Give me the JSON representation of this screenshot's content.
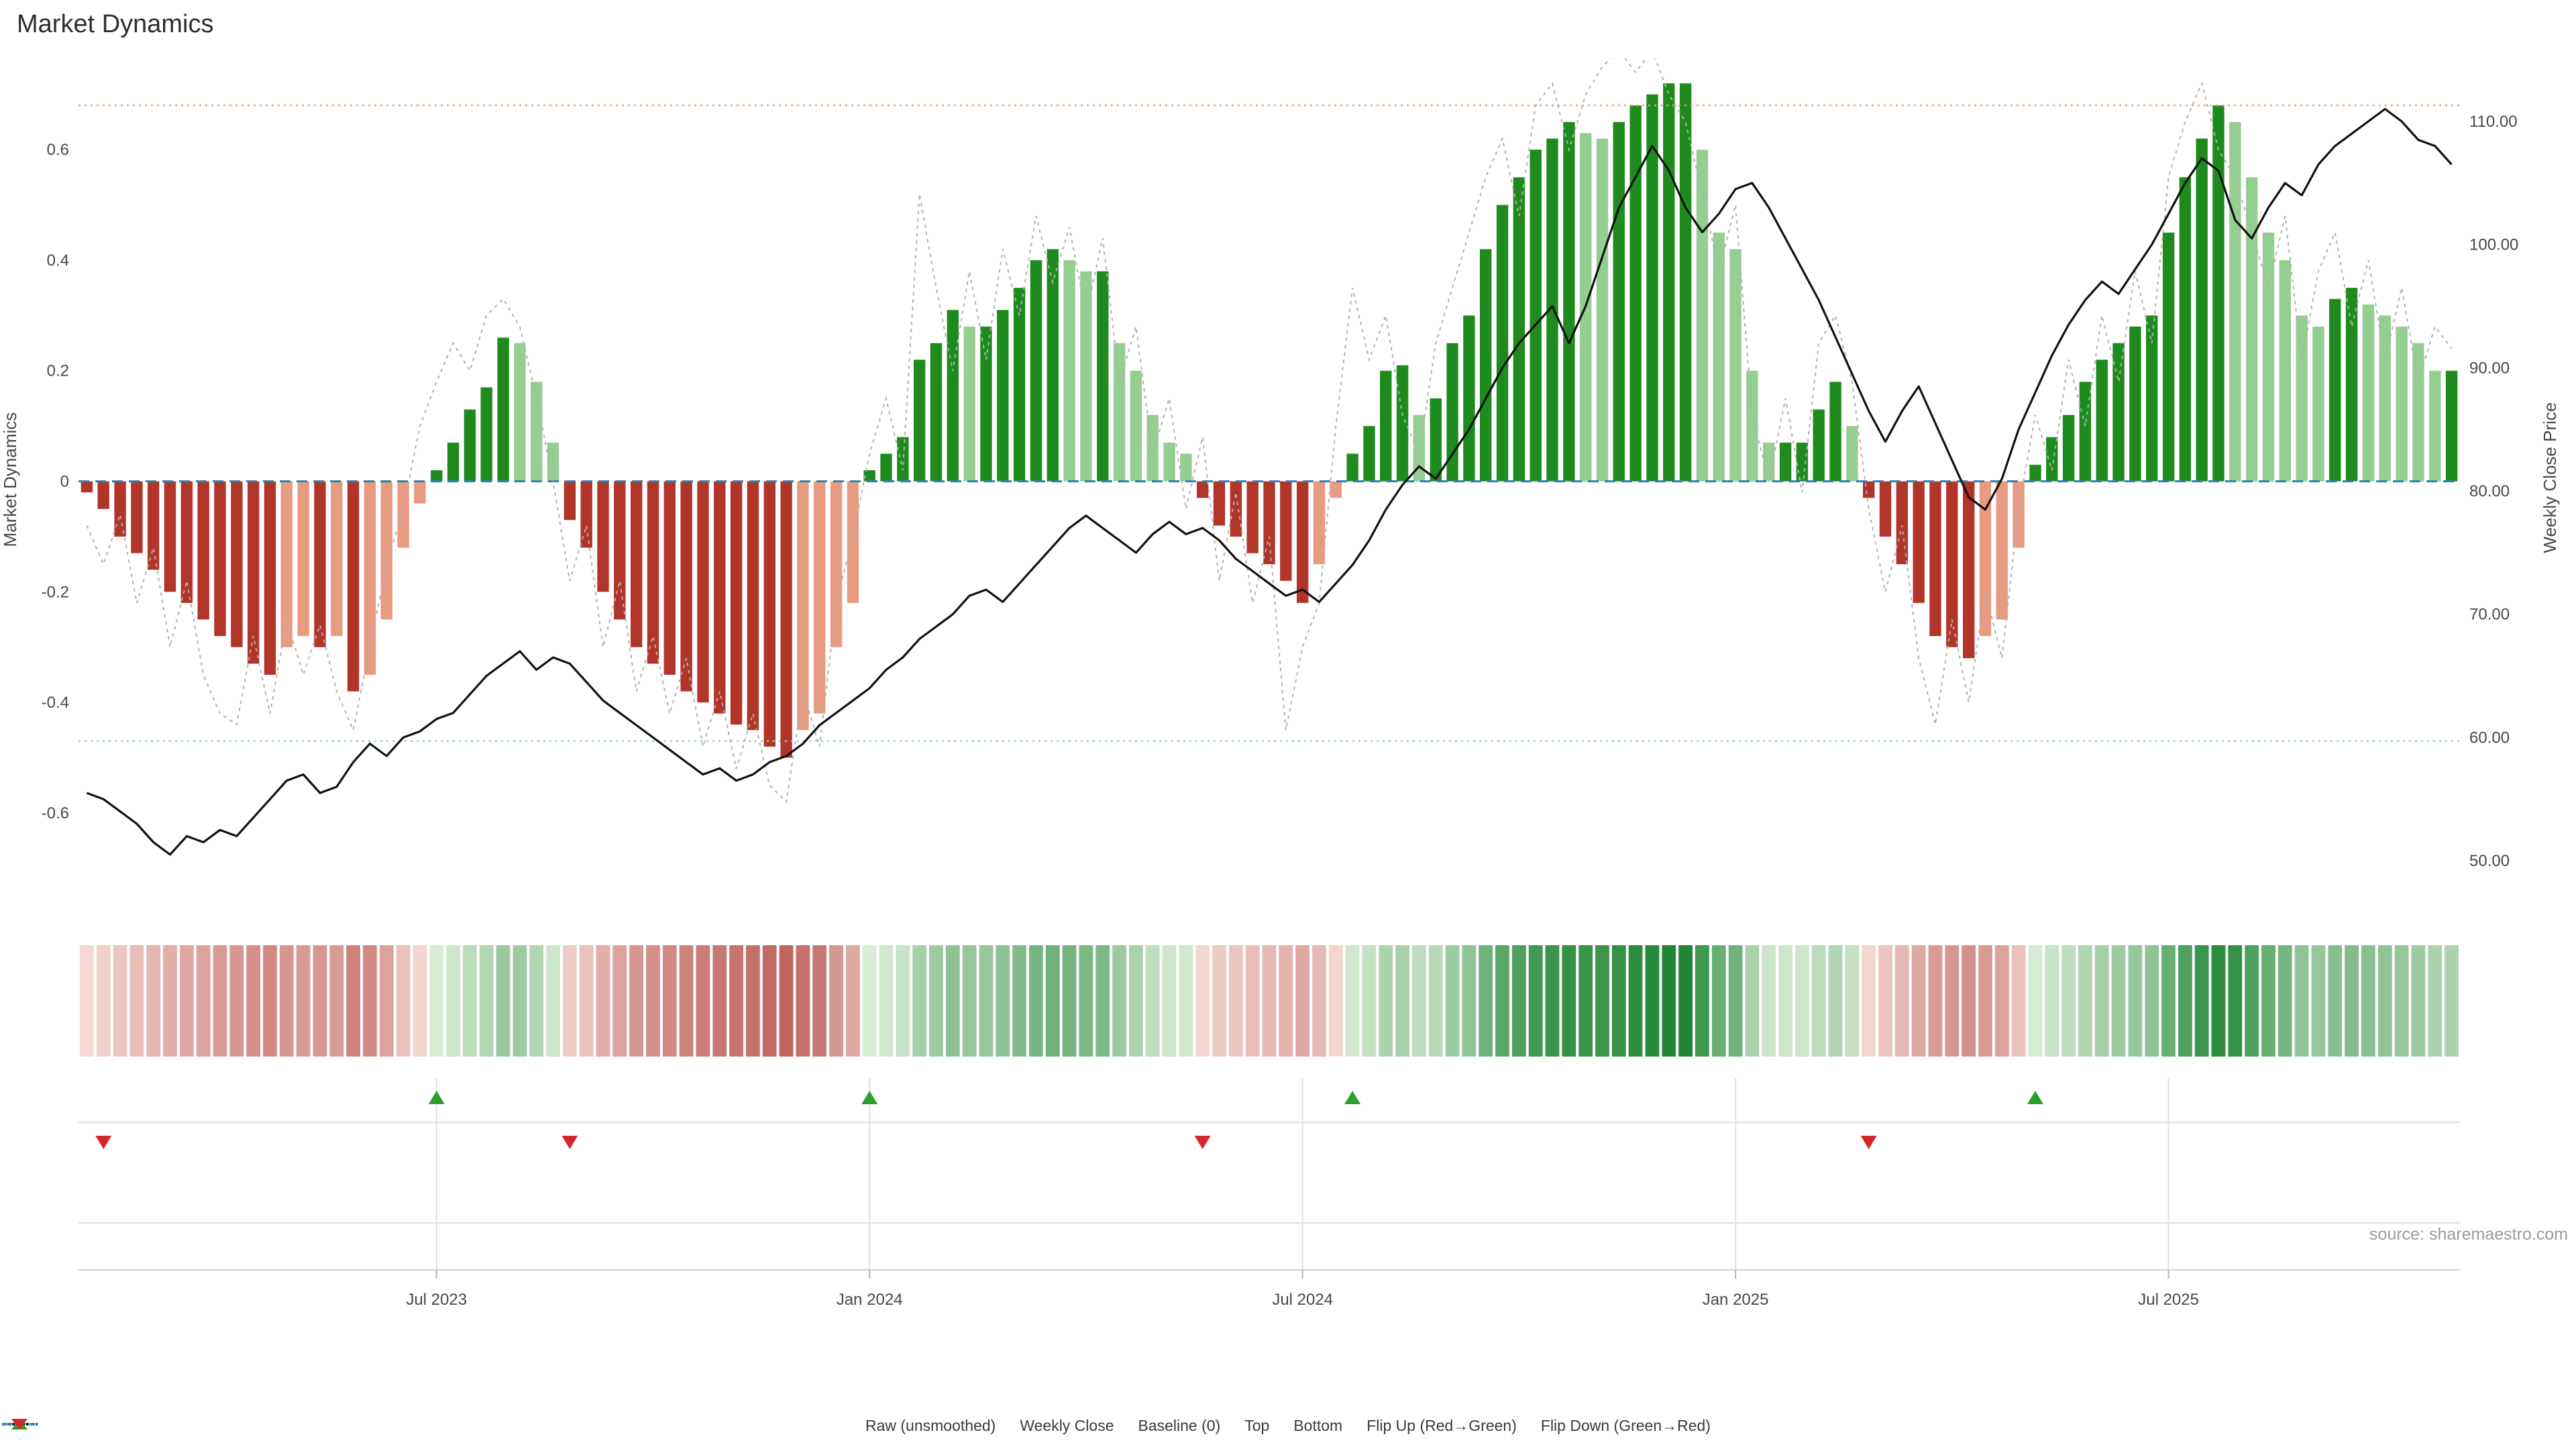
{
  "page": {
    "source": "source: sharemaestro.com"
  },
  "colors": {
    "bar_up_strong": "#1f8b1f",
    "bar_up_weak": "#94ce90",
    "bar_down_strong": "#b2352a",
    "bar_down_weak": "#e79b80",
    "weekly_close": "#111111",
    "raw": "#b0b0b0",
    "baseline": "#2f7fb6",
    "top": "#e8a170",
    "bottom": "#86cfe3",
    "flip_up": "#2ca02c",
    "flip_down": "#d62728",
    "grid": "#e0e0e0",
    "axis_line": "#cfcfcf",
    "heat_pos_strong": [
      34,
      135,
      53
    ],
    "heat_pos_weak": [
      222,
      239,
      219
    ],
    "heat_neg_strong": [
      168,
      50,
      42
    ],
    "heat_neg_weak": [
      247,
      221,
      216
    ]
  },
  "chart_data": {
    "type": "bar",
    "title": "Market Dynamics",
    "subtitle": "",
    "legend_position": "bottom",
    "grid": "off",
    "n_weeks": 143,
    "x_tick_indices": [
      21,
      47,
      73,
      99,
      125
    ],
    "x_tick_labels": [
      "Jul 2023",
      "Jan 2024",
      "Jul 2024",
      "Jan 2025",
      "Jul 2025"
    ],
    "left_axis": {
      "label": "Market Dynamics",
      "tick_values": [
        0.6,
        0.4,
        0.2,
        0,
        -0.2,
        -0.4,
        -0.6
      ],
      "tick_labels": [
        "0.6",
        "0.4",
        "0.2",
        "0",
        "-0.2",
        "-0.4",
        "-0.6"
      ],
      "range": [
        -0.755,
        0.765
      ]
    },
    "right_axis": {
      "label": "Weekly Close Price",
      "tick_values": [
        110,
        100,
        90,
        80,
        70,
        60,
        50
      ],
      "tick_labels": [
        "110.00",
        "100.00",
        "90.00",
        "80.00",
        "70.00",
        "60.00",
        "50.00"
      ],
      "range": [
        46.9,
        115.1
      ]
    },
    "thresholds": {
      "baseline": 0,
      "top": 0.68,
      "bottom": -0.47
    },
    "flips": {
      "up_indices": [
        21,
        47,
        76,
        117
      ],
      "down_indices": [
        1,
        29,
        67,
        107
      ]
    },
    "series": {
      "market_dynamics": [
        -0.02,
        -0.05,
        -0.1,
        -0.13,
        -0.16,
        -0.2,
        -0.22,
        -0.25,
        -0.28,
        -0.3,
        -0.33,
        -0.35,
        -0.3,
        -0.28,
        -0.3,
        -0.28,
        -0.38,
        -0.35,
        -0.25,
        -0.12,
        -0.04,
        0.02,
        0.07,
        0.13,
        0.17,
        0.26,
        0.25,
        0.18,
        0.07,
        -0.07,
        -0.12,
        -0.2,
        -0.25,
        -0.3,
        -0.33,
        -0.35,
        -0.38,
        -0.4,
        -0.42,
        -0.44,
        -0.45,
        -0.48,
        -0.5,
        -0.45,
        -0.42,
        -0.3,
        -0.22,
        0.02,
        0.05,
        0.08,
        0.22,
        0.25,
        0.31,
        0.28,
        0.28,
        0.31,
        0.35,
        0.4,
        0.42,
        0.4,
        0.38,
        0.38,
        0.25,
        0.2,
        0.12,
        0.07,
        0.05,
        -0.03,
        -0.08,
        -0.1,
        -0.13,
        -0.15,
        -0.18,
        -0.22,
        -0.15,
        -0.03,
        0.05,
        0.1,
        0.2,
        0.21,
        0.12,
        0.15,
        0.25,
        0.3,
        0.42,
        0.5,
        0.55,
        0.6,
        0.62,
        0.65,
        0.63,
        0.62,
        0.65,
        0.68,
        0.7,
        0.72,
        0.72,
        0.6,
        0.45,
        0.42,
        0.2,
        0.07,
        0.07,
        0.07,
        0.13,
        0.18,
        0.1,
        -0.03,
        -0.1,
        -0.15,
        -0.22,
        -0.28,
        -0.3,
        -0.32,
        -0.28,
        -0.25,
        -0.12,
        0.03,
        0.08,
        0.12,
        0.18,
        0.22,
        0.25,
        0.28,
        0.3,
        0.45,
        0.55,
        0.62,
        0.68,
        0.65,
        0.55,
        0.45,
        0.4,
        0.3,
        0.28,
        0.33,
        0.35,
        0.32,
        0.3,
        0.28,
        0.25,
        0.2,
        0.2
      ],
      "raw_unsmoothed": [
        -0.08,
        -0.15,
        -0.06,
        -0.22,
        -0.12,
        -0.3,
        -0.18,
        -0.35,
        -0.42,
        -0.44,
        -0.28,
        -0.42,
        -0.25,
        -0.35,
        -0.26,
        -0.38,
        -0.45,
        -0.3,
        -0.15,
        -0.05,
        0.1,
        0.18,
        0.25,
        0.2,
        0.3,
        0.33,
        0.28,
        0.15,
        0.0,
        -0.18,
        -0.08,
        -0.3,
        -0.18,
        -0.38,
        -0.28,
        -0.42,
        -0.32,
        -0.48,
        -0.38,
        -0.52,
        -0.42,
        -0.55,
        -0.58,
        -0.38,
        -0.48,
        -0.22,
        -0.1,
        0.05,
        0.15,
        0.02,
        0.52,
        0.35,
        0.2,
        0.38,
        0.22,
        0.42,
        0.3,
        0.48,
        0.36,
        0.46,
        0.3,
        0.44,
        0.18,
        0.28,
        0.05,
        0.15,
        -0.05,
        0.08,
        -0.18,
        -0.02,
        -0.22,
        -0.1,
        -0.45,
        -0.3,
        -0.22,
        0.1,
        0.35,
        0.22,
        0.3,
        0.12,
        0.05,
        0.25,
        0.35,
        0.45,
        0.55,
        0.62,
        0.48,
        0.68,
        0.72,
        0.6,
        0.7,
        0.75,
        0.78,
        0.74,
        0.78,
        0.7,
        0.65,
        0.52,
        0.38,
        0.5,
        0.12,
        0.0,
        0.15,
        -0.02,
        0.25,
        0.3,
        0.18,
        -0.05,
        -0.2,
        -0.08,
        -0.32,
        -0.44,
        -0.25,
        -0.4,
        -0.2,
        -0.32,
        -0.05,
        0.12,
        0.02,
        0.22,
        0.1,
        0.3,
        0.18,
        0.38,
        0.25,
        0.55,
        0.65,
        0.72,
        0.6,
        0.55,
        0.45,
        0.35,
        0.48,
        0.22,
        0.38,
        0.45,
        0.28,
        0.4,
        0.22,
        0.35,
        0.18,
        0.28,
        0.24
      ],
      "weekly_close": [
        55.5,
        55.0,
        54.0,
        53.0,
        51.5,
        50.5,
        52.0,
        51.5,
        52.5,
        52.0,
        53.5,
        55.0,
        56.5,
        57.0,
        55.5,
        56.0,
        58.0,
        59.5,
        58.5,
        60.0,
        60.5,
        61.5,
        62.0,
        63.5,
        65.0,
        66.0,
        67.0,
        65.5,
        66.5,
        66.0,
        64.5,
        63.0,
        62.0,
        61.0,
        60.0,
        59.0,
        58.0,
        57.0,
        57.5,
        56.5,
        57.0,
        58.0,
        58.5,
        59.5,
        61.0,
        62.0,
        63.0,
        64.0,
        65.5,
        66.5,
        68.0,
        69.0,
        70.0,
        71.5,
        72.0,
        71.0,
        72.5,
        74.0,
        75.5,
        77.0,
        78.0,
        77.0,
        76.0,
        75.0,
        76.5,
        77.5,
        76.5,
        77.0,
        76.0,
        74.5,
        73.5,
        72.5,
        71.5,
        72.0,
        71.0,
        72.5,
        74.0,
        76.0,
        78.5,
        80.5,
        82.0,
        81.0,
        83.0,
        85.0,
        87.5,
        90.0,
        92.0,
        93.5,
        95.0,
        92.0,
        95.0,
        99.0,
        103.0,
        105.5,
        108.0,
        106.0,
        103.0,
        101.0,
        102.5,
        104.5,
        105.0,
        103.0,
        100.5,
        98.0,
        95.5,
        92.5,
        89.5,
        86.5,
        84.0,
        86.5,
        88.5,
        85.5,
        82.5,
        79.5,
        78.5,
        81.0,
        85.0,
        88.0,
        91.0,
        93.5,
        95.5,
        97.0,
        96.0,
        98.0,
        100.0,
        102.5,
        105.0,
        107.0,
        106.0,
        102.0,
        100.5,
        103.0,
        105.0,
        104.0,
        106.5,
        108.0,
        109.0,
        110.0,
        111.0,
        110.0,
        108.5,
        108.0,
        106.5
      ]
    }
  },
  "legend": {
    "items": [
      {
        "label": "Raw (unsmoothed)",
        "symbol": "line",
        "color": "#b0b0b0",
        "dash": "4 5"
      },
      {
        "label": "Weekly Close",
        "symbol": "line",
        "color": "#111111",
        "dash": ""
      },
      {
        "label": "Baseline (0)",
        "symbol": "line",
        "color": "#2f7fb6",
        "dash": "13 7"
      },
      {
        "label": "Top",
        "symbol": "line",
        "color": "#e8a170",
        "dash": "2 5"
      },
      {
        "label": "Bottom",
        "symbol": "line",
        "color": "#86cfe3",
        "dash": "2 5"
      },
      {
        "label": "Flip Up (Red→Green)",
        "symbol": "triangle-up",
        "color": "#2ca02c"
      },
      {
        "label": "Flip Down (Green→Red)",
        "symbol": "triangle-down",
        "color": "#d62728"
      }
    ]
  }
}
